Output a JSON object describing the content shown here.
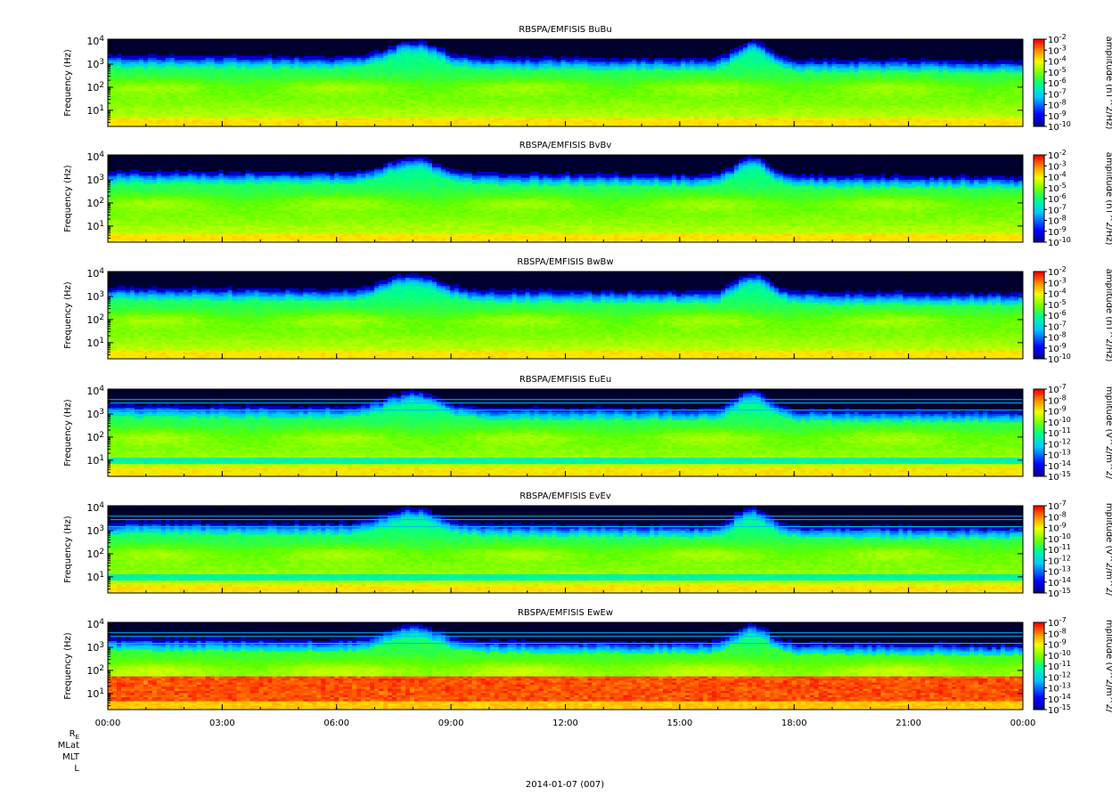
{
  "chart_data": [
    {
      "type": "heatmap",
      "title": "RBSPA/EMFISIS  BuBu",
      "ylabel": "Frequency (Hz)",
      "yscale": "log",
      "ylim": [
        2,
        12000
      ],
      "yticks": [
        "10^4",
        "10^3",
        "10^2",
        "10^1"
      ],
      "colorbar": {
        "label": "amplitude (nT^2/Hz)",
        "min_exp": -10,
        "max_exp": -2,
        "scale": "log",
        "ticks": [
          "10^-2",
          "10^-3",
          "10^-4",
          "10^-5",
          "10^-6",
          "10^-7",
          "10^-8",
          "10^-9",
          "10^-10"
        ]
      },
      "background_level": 0.18,
      "features": {
        "red_base": false,
        "noise_lines": false,
        "upper_band": 0.28
      }
    },
    {
      "type": "heatmap",
      "title": "RBSPA/EMFISIS  BvBv",
      "ylabel": "Frequency (Hz)",
      "yscale": "log",
      "ylim": [
        2,
        12000
      ],
      "yticks": [
        "10^4",
        "10^3",
        "10^2",
        "10^1"
      ],
      "colorbar": {
        "label": "amplitude (nT^2/Hz)",
        "min_exp": -10,
        "max_exp": -2,
        "scale": "log",
        "ticks": [
          "10^-2",
          "10^-3",
          "10^-4",
          "10^-5",
          "10^-6",
          "10^-7",
          "10^-8",
          "10^-9",
          "10^-10"
        ]
      },
      "background_level": 0.18,
      "features": {
        "red_base": false,
        "noise_lines": false,
        "upper_band": 0.28
      }
    },
    {
      "type": "heatmap",
      "title": "RBSPA/EMFISIS  BwBw",
      "ylabel": "Frequency (Hz)",
      "yscale": "log",
      "ylim": [
        2,
        12000
      ],
      "yticks": [
        "10^4",
        "10^3",
        "10^2",
        "10^1"
      ],
      "colorbar": {
        "label": "amplitude (nT^2/Hz)",
        "min_exp": -10,
        "max_exp": -2,
        "scale": "log",
        "ticks": [
          "10^-2",
          "10^-3",
          "10^-4",
          "10^-5",
          "10^-6",
          "10^-7",
          "10^-8",
          "10^-9",
          "10^-10"
        ]
      },
      "background_level": 0.18,
      "features": {
        "red_base": false,
        "noise_lines": false,
        "upper_band": 0.28
      }
    },
    {
      "type": "heatmap",
      "title": "RBSPA/EMFISIS  EuEu",
      "ylabel": "Frequency (Hz)",
      "yscale": "log",
      "ylim": [
        2,
        12000
      ],
      "yticks": [
        "10^4",
        "10^3",
        "10^2",
        "10^1"
      ],
      "colorbar": {
        "label": "mplitude (V^2/m^2/",
        "min_exp": -15,
        "max_exp": -7,
        "scale": "log",
        "ticks": [
          "10^-7",
          "10^-8",
          "10^-9",
          "10^-10",
          "10^-11",
          "10^-12",
          "10^-13",
          "10^-14",
          "10^-15"
        ]
      },
      "background_level": 0.2,
      "features": {
        "red_base": false,
        "noise_lines": true,
        "upper_band": 0.3
      }
    },
    {
      "type": "heatmap",
      "title": "RBSPA/EMFISIS  EvEv",
      "ylabel": "Frequency (Hz)",
      "yscale": "log",
      "ylim": [
        2,
        12000
      ],
      "yticks": [
        "10^4",
        "10^3",
        "10^2",
        "10^1"
      ],
      "colorbar": {
        "label": "mplitude (V^2/m^2/",
        "min_exp": -15,
        "max_exp": -7,
        "scale": "log",
        "ticks": [
          "10^-7",
          "10^-8",
          "10^-9",
          "10^-10",
          "10^-11",
          "10^-12",
          "10^-13",
          "10^-14",
          "10^-15"
        ]
      },
      "background_level": 0.2,
      "features": {
        "red_base": false,
        "noise_lines": true,
        "upper_band": 0.3
      }
    },
    {
      "type": "heatmap",
      "title": "RBSPA/EMFISIS  EwEw",
      "ylabel": "Frequency (Hz)",
      "yscale": "log",
      "ylim": [
        2,
        12000
      ],
      "yticks": [
        "10^4",
        "10^3",
        "10^2",
        "10^1"
      ],
      "colorbar": {
        "label": "mplitude (V^2/m^2/",
        "min_exp": -15,
        "max_exp": -7,
        "scale": "log",
        "ticks": [
          "10^-7",
          "10^-8",
          "10^-9",
          "10^-10",
          "10^-11",
          "10^-12",
          "10^-13",
          "10^-14",
          "10^-15"
        ]
      },
      "background_level": 0.32,
      "features": {
        "red_base": true,
        "noise_lines": true,
        "upper_band": 0.38
      }
    }
  ],
  "x_axis": {
    "type": "time",
    "range": [
      "00:00",
      "00:00"
    ],
    "tick_labels": [
      "00:00",
      "03:00",
      "06:00",
      "09:00",
      "12:00",
      "15:00",
      "18:00",
      "21:00",
      "00:00"
    ],
    "date_label": "2014-01-07 (007)",
    "ephemeris_labels": [
      "R_E",
      "MLat",
      "MLT",
      "L"
    ]
  }
}
